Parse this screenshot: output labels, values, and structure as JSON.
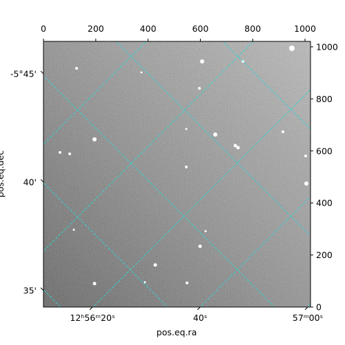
{
  "chart_data": {
    "type": "image",
    "xlabel": "pos.eq.ra",
    "ylabel": "pos.eq.dec",
    "xlim": [
      0,
      1021
    ],
    "xticks": [
      0,
      200,
      400,
      600,
      800,
      1000
    ],
    "ylim": [
      0,
      1021
    ],
    "yticks": [
      0,
      200,
      400,
      600,
      800,
      1000
    ],
    "world_xlim": [
      194.0454,
      194.2521
    ],
    "world_xticks": [
      {
        "value": 194.08333,
        "label": "12ʰ56ᵐ20ˢ"
      },
      {
        "value": 194.16667,
        "label": "40ˢ"
      },
      {
        "value": 194.25,
        "label": "57ᵐ00ˢ"
      }
    ],
    "world_ylim": [
      -5.7749,
      -5.5706
    ],
    "world_yticks": [
      {
        "value": -5.75,
        "label": "-5°45'"
      },
      {
        "value": -5.66667,
        "label": "40'"
      },
      {
        "value": -5.58333,
        "label": "35'"
      }
    ],
    "grid_color": "#2fd6d0"
  }
}
